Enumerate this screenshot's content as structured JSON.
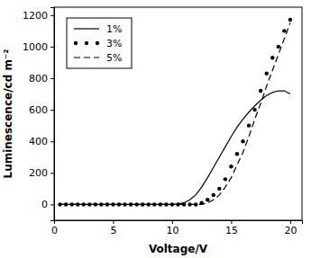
{
  "chart_data": {
    "type": "line",
    "x_label": "Voltage/V",
    "y_label": "Luminescence/cd m⁻²",
    "x": [
      0.5,
      1,
      1.5,
      2,
      2.5,
      3,
      3.5,
      4,
      4.5,
      5,
      5.5,
      6,
      6.5,
      7,
      7.5,
      8,
      8.5,
      9,
      9.5,
      10,
      10.5,
      11,
      11.5,
      12,
      12.5,
      13,
      13.5,
      14,
      14.5,
      15,
      15.5,
      16,
      16.5,
      17,
      17.5,
      18,
      18.5,
      19,
      19.5,
      20
    ],
    "series": [
      {
        "name": "1%",
        "color": "#000000",
        "line_style": "solid",
        "marker": "none",
        "values": [
          0,
          0,
          0,
          0,
          0,
          0,
          0,
          0,
          0,
          0,
          0,
          0,
          0,
          0,
          0,
          0,
          0,
          0,
          0,
          0,
          3,
          10,
          30,
          60,
          110,
          170,
          235,
          300,
          365,
          430,
          490,
          540,
          585,
          625,
          660,
          690,
          710,
          720,
          720,
          700
        ]
      },
      {
        "name": "3%",
        "color": "#000000",
        "line_style": "none",
        "marker": "circle",
        "values": [
          0,
          0,
          0,
          0,
          0,
          0,
          0,
          0,
          0,
          0,
          0,
          0,
          0,
          0,
          0,
          0,
          0,
          0,
          0,
          0,
          0,
          0,
          0,
          0,
          10,
          30,
          60,
          100,
          160,
          240,
          320,
          400,
          500,
          600,
          720,
          830,
          930,
          1000,
          1100,
          1170
        ]
      },
      {
        "name": "5%",
        "color": "#000000",
        "line_style": "dashed",
        "marker": "none",
        "values": [
          0,
          0,
          0,
          0,
          0,
          0,
          0,
          0,
          0,
          0,
          0,
          0,
          0,
          0,
          0,
          0,
          0,
          0,
          0,
          0,
          0,
          0,
          0,
          0,
          0,
          10,
          30,
          60,
          110,
          170,
          250,
          330,
          430,
          540,
          640,
          750,
          850,
          950,
          1050,
          1150
        ]
      }
    ],
    "xlim": [
      0,
      21
    ],
    "xticks": [
      0,
      5,
      10,
      15,
      20
    ],
    "ylim": [
      -100,
      1250
    ],
    "yticks": [
      0,
      200,
      400,
      600,
      800,
      1000,
      1200
    ],
    "legend": "upper left",
    "grid": false
  }
}
